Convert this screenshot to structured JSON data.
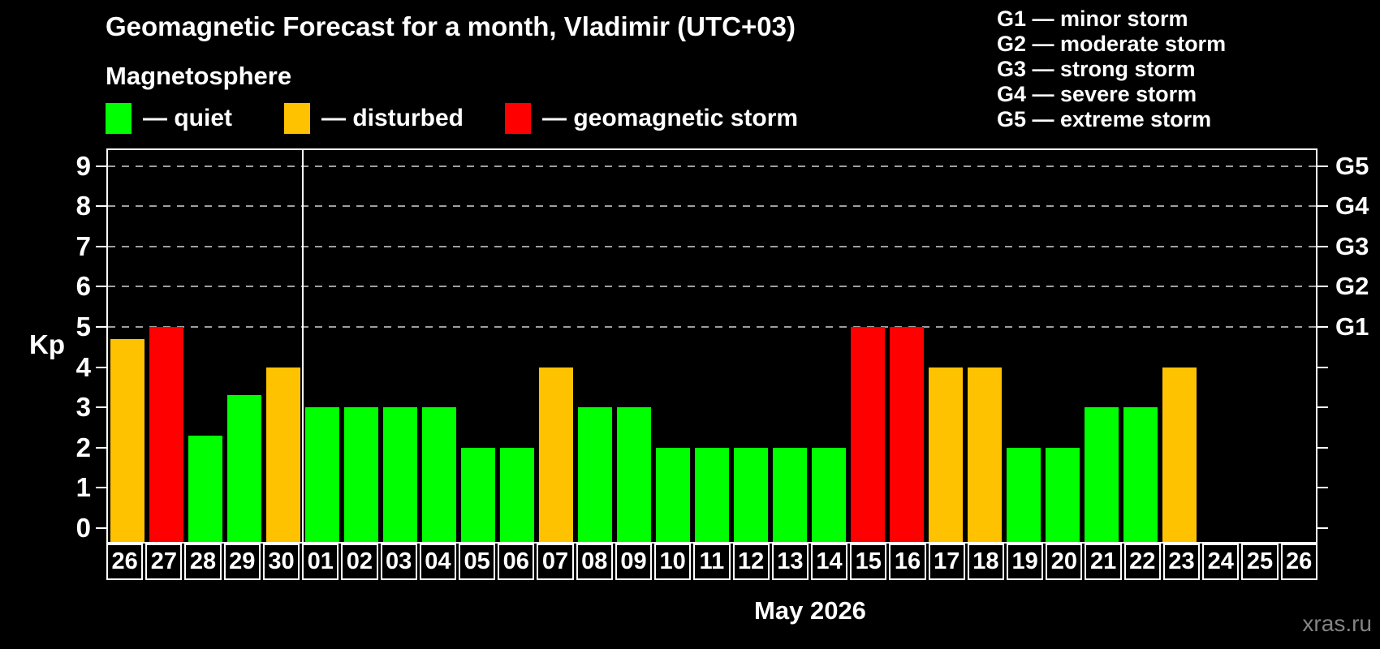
{
  "header": {
    "title": "Geomagnetic Forecast for a month, Vladimir (UTC+03)",
    "subtitle": "Magnetosphere"
  },
  "colors": {
    "quiet": "#00ff00",
    "disturbed": "#ffc200",
    "storm": "#ff0000",
    "axis": "#ffffff",
    "grid": "#9f9f9f",
    "watermark": "#848484"
  },
  "legend": {
    "items": [
      {
        "label": "— quiet",
        "status": "quiet"
      },
      {
        "label": "— disturbed",
        "status": "disturbed"
      },
      {
        "label": "— geomagnetic storm",
        "status": "storm"
      }
    ]
  },
  "g_legend": {
    "lines": [
      "G1 — minor storm",
      "G2 — moderate storm",
      "G3 — strong storm",
      "G4 — severe storm",
      "G5 — extreme storm"
    ]
  },
  "chart_data": {
    "type": "bar",
    "title": "Geomagnetic Forecast for a month, Vladimir (UTC+03)",
    "ylabel": "Kp",
    "xlabel": "May 2026",
    "ylim": [
      0,
      9
    ],
    "y_ticks": [
      0,
      1,
      2,
      3,
      4,
      5,
      6,
      7,
      8,
      9
    ],
    "gridlines_at": [
      5,
      6,
      7,
      8,
      9
    ],
    "grid": "dashed",
    "legend_position": "top",
    "right_axis": [
      {
        "label": "G1",
        "kp": 5
      },
      {
        "label": "G2",
        "kp": 6
      },
      {
        "label": "G3",
        "kp": 7
      },
      {
        "label": "G4",
        "kp": 8
      },
      {
        "label": "G5",
        "kp": 9
      }
    ],
    "month_separator_after_index": 4,
    "bars": [
      {
        "day": "26",
        "kp": 4.7,
        "status": "disturbed"
      },
      {
        "day": "27",
        "kp": 5,
        "status": "storm"
      },
      {
        "day": "28",
        "kp": 2.3,
        "status": "quiet"
      },
      {
        "day": "29",
        "kp": 3.3,
        "status": "quiet"
      },
      {
        "day": "30",
        "kp": 4,
        "status": "disturbed"
      },
      {
        "day": "01",
        "kp": 3,
        "status": "quiet"
      },
      {
        "day": "02",
        "kp": 3,
        "status": "quiet"
      },
      {
        "day": "03",
        "kp": 3,
        "status": "quiet"
      },
      {
        "day": "04",
        "kp": 3,
        "status": "quiet"
      },
      {
        "day": "05",
        "kp": 2,
        "status": "quiet"
      },
      {
        "day": "06",
        "kp": 2,
        "status": "quiet"
      },
      {
        "day": "07",
        "kp": 4,
        "status": "disturbed"
      },
      {
        "day": "08",
        "kp": 3,
        "status": "quiet"
      },
      {
        "day": "09",
        "kp": 3,
        "status": "quiet"
      },
      {
        "day": "10",
        "kp": 2,
        "status": "quiet"
      },
      {
        "day": "11",
        "kp": 2,
        "status": "quiet"
      },
      {
        "day": "12",
        "kp": 2,
        "status": "quiet"
      },
      {
        "day": "13",
        "kp": 2,
        "status": "quiet"
      },
      {
        "day": "14",
        "kp": 2,
        "status": "quiet"
      },
      {
        "day": "15",
        "kp": 5,
        "status": "storm"
      },
      {
        "day": "16",
        "kp": 5,
        "status": "storm"
      },
      {
        "day": "17",
        "kp": 4,
        "status": "disturbed"
      },
      {
        "day": "18",
        "kp": 4,
        "status": "disturbed"
      },
      {
        "day": "19",
        "kp": 2,
        "status": "quiet"
      },
      {
        "day": "20",
        "kp": 2,
        "status": "quiet"
      },
      {
        "day": "21",
        "kp": 3,
        "status": "quiet"
      },
      {
        "day": "22",
        "kp": 3,
        "status": "quiet"
      },
      {
        "day": "23",
        "kp": 4,
        "status": "disturbed"
      },
      {
        "day": "24",
        "kp": null,
        "status": null
      },
      {
        "day": "25",
        "kp": null,
        "status": null
      },
      {
        "day": "26",
        "kp": null,
        "status": null
      }
    ]
  },
  "watermark": {
    "text": "xras.ru"
  }
}
